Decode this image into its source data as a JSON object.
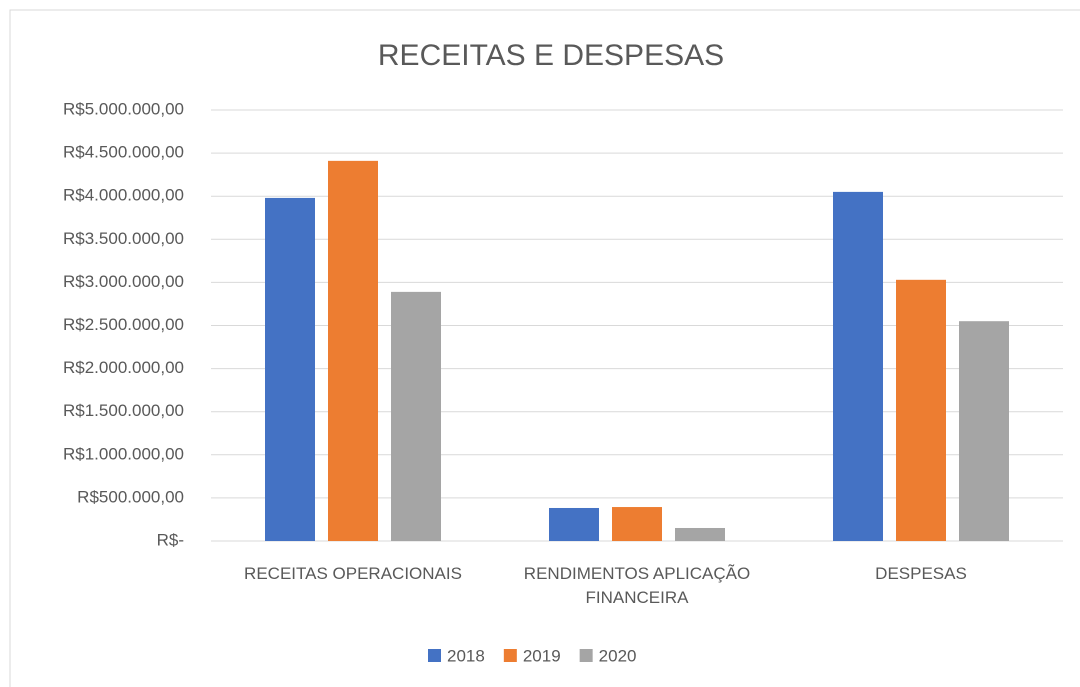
{
  "chart_data": {
    "type": "bar",
    "title": "RECEITAS E DESPESAS",
    "categories": [
      "RECEITAS OPERACIONAIS",
      "RENDIMENTOS APLICAÇÃO FINANCEIRA",
      "DESPESAS"
    ],
    "series": [
      {
        "name": "2018",
        "color": "#4472c4",
        "values": [
          3980000,
          383000,
          4050000
        ]
      },
      {
        "name": "2019",
        "color": "#ed7d31",
        "values": [
          4410000,
          394000,
          3030000
        ]
      },
      {
        "name": "2020",
        "color": "#a5a5a5",
        "values": [
          2890000,
          151000,
          2550000
        ]
      }
    ],
    "ylim": [
      0,
      5000000
    ],
    "yticks": [
      {
        "value": 0,
        "label": "R$-"
      },
      {
        "value": 500000,
        "label": "R$500.000,00"
      },
      {
        "value": 1000000,
        "label": "R$1.000.000,00"
      },
      {
        "value": 1500000,
        "label": "R$1.500.000,00"
      },
      {
        "value": 2000000,
        "label": "R$2.000.000,00"
      },
      {
        "value": 2500000,
        "label": "R$2.500.000,00"
      },
      {
        "value": 3000000,
        "label": "R$3.000.000,00"
      },
      {
        "value": 3500000,
        "label": "R$3.500.000,00"
      },
      {
        "value": 4000000,
        "label": "R$4.000.000,00"
      },
      {
        "value": 4500000,
        "label": "R$4.500.000,00"
      },
      {
        "value": 5000000,
        "label": "R$5.000.000,00"
      }
    ],
    "grid": true,
    "legend": "bottom"
  }
}
